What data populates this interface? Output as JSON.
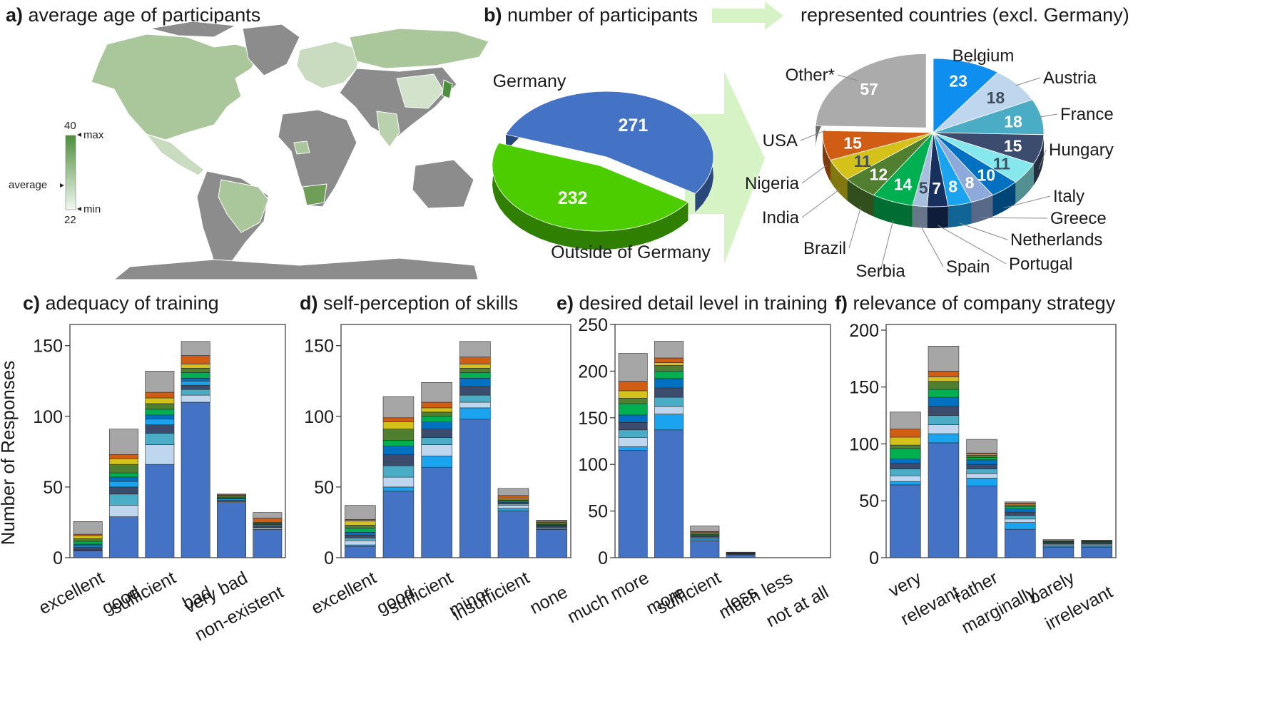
{
  "panels": {
    "a": {
      "letter": "a)",
      "title": "average age of participants",
      "legend": {
        "max_value": "40",
        "max_label": "max",
        "avg_label": "average",
        "min_label": "min",
        "min_value": "22"
      }
    },
    "b": {
      "letter": "b)",
      "title": "number of participants",
      "title2": "represented countries (excl. Germany)"
    },
    "c": {
      "letter": "c)",
      "title": "adequacy of training"
    },
    "d": {
      "letter": "d)",
      "title": "self-perception of skills"
    },
    "e": {
      "letter": "e)",
      "title": "desired detail level in training"
    },
    "f": {
      "letter": "f)",
      "title": "relevance of company strategy"
    }
  },
  "colors": {
    "germany": "#4472c4",
    "outside": "#4ccd00",
    "gray": "#a6a6a6",
    "map_land": "#8c8c8c",
    "map_green": "#6e9e57"
  },
  "chart_data": [
    {
      "type": "pie",
      "panel": "b-left",
      "slices": [
        {
          "label": "Germany",
          "value": 271,
          "color": "#4472c4"
        },
        {
          "label": "Outside of Germany",
          "value": 232,
          "color": "#4ccd00"
        }
      ]
    },
    {
      "type": "pie",
      "panel": "b-right",
      "slices": [
        {
          "label": "Belgium",
          "value": 23,
          "color": "#0e8ff0"
        },
        {
          "label": "Austria",
          "value": 18,
          "color": "#bed7ee"
        },
        {
          "label": "France",
          "value": 18,
          "color": "#4bacc6"
        },
        {
          "label": "Hungary",
          "value": 15,
          "color": "#3b4c6e"
        },
        {
          "label": "",
          "value": 11,
          "color": "#86e8ec"
        },
        {
          "label": "Italy",
          "value": 10,
          "color": "#0070c0"
        },
        {
          "label": "Greece",
          "value": 8,
          "color": "#8eaadb"
        },
        {
          "label": "Netherlands",
          "value": 8,
          "color": "#1aa3ef"
        },
        {
          "label": "Portugal",
          "value": 7,
          "color": "#17305e"
        },
        {
          "label": "Spain",
          "value": 5,
          "color": "#a8bfde"
        },
        {
          "label": "Serbia",
          "value": 14,
          "color": "#00b050"
        },
        {
          "label": "Brazil",
          "value": 12,
          "color": "#4f7f2f"
        },
        {
          "label": "India",
          "value": 11,
          "color": "#d4c21a"
        },
        {
          "label": "Nigeria",
          "value": 15,
          "color": "#d05d13"
        },
        {
          "label": "USA",
          "value": 0,
          "color": "#2f3f55"
        },
        {
          "label": "Other*",
          "value": 57,
          "color": "#ababab"
        }
      ]
    },
    {
      "type": "bar",
      "panel": "c",
      "stacked": true,
      "ylabel": "Number of Responses",
      "ylim": [
        0,
        165
      ],
      "yticks": [
        0,
        50,
        100,
        150
      ],
      "categories": [
        "excellent",
        "good",
        "sufficient",
        "bad",
        "very bad",
        "non-existent"
      ],
      "series": [
        {
          "values": [
            5,
            29,
            66,
            110,
            39,
            20
          ],
          "color": "#4472c4"
        },
        {
          "values": [
            0.3,
            8,
            14,
            5,
            0.5,
            1
          ],
          "color": "#bed7ee"
        },
        {
          "values": [
            0.3,
            8,
            8,
            4,
            0.5,
            0.5
          ],
          "color": "#4bacc6"
        },
        {
          "values": [
            2,
            5,
            6,
            3,
            0.5,
            0.5
          ],
          "color": "#3b4c6e"
        },
        {
          "values": [
            1,
            4,
            4,
            3,
            1,
            1
          ],
          "color": "#1aa3ef"
        },
        {
          "values": [
            1,
            3,
            3,
            2,
            0.5,
            0.5
          ],
          "color": "#0070c0"
        },
        {
          "values": [
            2,
            3,
            4,
            4,
            0.5,
            0.5
          ],
          "color": "#00b050"
        },
        {
          "values": [
            2,
            6,
            4,
            3,
            1,
            0.5
          ],
          "color": "#4f7f2f"
        },
        {
          "values": [
            2,
            4,
            4,
            3,
            0.5,
            0.5
          ],
          "color": "#d4c21a"
        },
        {
          "values": [
            1,
            3,
            4,
            6,
            0.5,
            3
          ],
          "color": "#d05d13"
        },
        {
          "values": [
            9,
            18,
            15,
            10,
            0.5,
            4
          ],
          "color": "#a6a6a6"
        }
      ]
    },
    {
      "type": "bar",
      "panel": "d",
      "stacked": true,
      "ylim": [
        0,
        165
      ],
      "yticks": [
        0,
        50,
        100,
        150
      ],
      "categories": [
        "excellent",
        "good",
        "sufficient",
        "minor",
        "insufficient",
        "none"
      ],
      "series": [
        {
          "values": [
            8,
            47,
            64,
            98,
            33,
            20
          ],
          "color": "#4472c4"
        },
        {
          "values": [
            1,
            3,
            8,
            8,
            2,
            1
          ],
          "color": "#1aa3ef"
        },
        {
          "values": [
            3,
            7,
            8,
            4,
            2,
            0.5
          ],
          "color": "#bed7ee"
        },
        {
          "values": [
            2,
            8,
            5,
            5,
            1,
            0.5
          ],
          "color": "#4bacc6"
        },
        {
          "values": [
            2,
            8,
            6,
            6,
            1,
            0.5
          ],
          "color": "#3b4c6e"
        },
        {
          "values": [
            2,
            6,
            5,
            6,
            1,
            0.5
          ],
          "color": "#0070c0"
        },
        {
          "values": [
            3,
            4,
            4,
            4,
            0.5,
            0.5
          ],
          "color": "#00b050"
        },
        {
          "values": [
            2,
            8,
            3,
            3,
            0.5,
            1
          ],
          "color": "#4f7f2f"
        },
        {
          "values": [
            3,
            5,
            3,
            3,
            1,
            0.5
          ],
          "color": "#d4c21a"
        },
        {
          "values": [
            1,
            3,
            4,
            5,
            2,
            1
          ],
          "color": "#d05d13"
        },
        {
          "values": [
            10,
            15,
            14,
            11,
            5,
            0.5
          ],
          "color": "#a6a6a6"
        }
      ]
    },
    {
      "type": "bar",
      "panel": "e",
      "stacked": true,
      "ylim": [
        0,
        250
      ],
      "yticks": [
        0,
        50,
        100,
        150,
        200,
        250
      ],
      "categories": [
        "much more",
        "more",
        "sufficient",
        "less",
        "much less",
        "not at all"
      ],
      "series": [
        {
          "values": [
            115,
            137,
            18,
            3,
            0,
            0
          ],
          "color": "#4472c4"
        },
        {
          "values": [
            4,
            17,
            2,
            0.5,
            0,
            0
          ],
          "color": "#1aa3ef"
        },
        {
          "values": [
            10,
            8,
            1,
            0.5,
            0,
            0
          ],
          "color": "#bed7ee"
        },
        {
          "values": [
            8,
            10,
            1,
            0.3,
            0,
            0
          ],
          "color": "#4bacc6"
        },
        {
          "values": [
            8,
            10,
            1,
            0.3,
            0,
            0
          ],
          "color": "#3b4c6e"
        },
        {
          "values": [
            8,
            10,
            1,
            0.3,
            0,
            0
          ],
          "color": "#0070c0"
        },
        {
          "values": [
            12,
            8,
            1,
            0.3,
            0,
            0
          ],
          "color": "#00b050"
        },
        {
          "values": [
            6,
            6,
            1,
            0.3,
            0,
            0
          ],
          "color": "#4f7f2f"
        },
        {
          "values": [
            8,
            3,
            1,
            0,
            0,
            0
          ],
          "color": "#d4c21a"
        },
        {
          "values": [
            10,
            5,
            1,
            0,
            0,
            0
          ],
          "color": "#d05d13"
        },
        {
          "values": [
            30,
            18,
            6,
            0.5,
            0,
            0
          ],
          "color": "#a6a6a6"
        }
      ]
    },
    {
      "type": "bar",
      "panel": "f",
      "stacked": true,
      "ylim": [
        0,
        205
      ],
      "yticks": [
        0,
        50,
        100,
        150,
        200
      ],
      "categories": [
        "very",
        "relevant",
        "rather",
        "marginally",
        "barely",
        "irrelevant"
      ],
      "series": [
        {
          "values": [
            64,
            101,
            63,
            25,
            9,
            9
          ],
          "color": "#4472c4"
        },
        {
          "values": [
            3,
            8,
            7,
            6,
            1,
            1
          ],
          "color": "#1aa3ef"
        },
        {
          "values": [
            5,
            8,
            4,
            3,
            1,
            1
          ],
          "color": "#bed7ee"
        },
        {
          "values": [
            6,
            8,
            4,
            3,
            1,
            1
          ],
          "color": "#4bacc6"
        },
        {
          "values": [
            5,
            8,
            4,
            3,
            1,
            1
          ],
          "color": "#3b4c6e"
        },
        {
          "values": [
            4,
            8,
            4,
            3,
            0.5,
            0.5
          ],
          "color": "#0070c0"
        },
        {
          "values": [
            9,
            7,
            2,
            2,
            0.5,
            0.5
          ],
          "color": "#00b050"
        },
        {
          "values": [
            3,
            7,
            2,
            1,
            0.5,
            0.5
          ],
          "color": "#4f7f2f"
        },
        {
          "values": [
            7,
            4,
            1,
            1,
            0.2,
            0.2
          ],
          "color": "#d4c21a"
        },
        {
          "values": [
            7,
            5,
            1,
            1,
            0.2,
            0.2
          ],
          "color": "#d05d13"
        },
        {
          "values": [
            15,
            22,
            12,
            1,
            1,
            0.5
          ],
          "color": "#a6a6a6"
        }
      ]
    }
  ]
}
